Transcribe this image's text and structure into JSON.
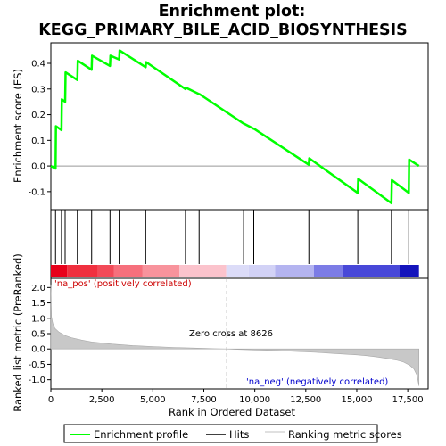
{
  "chart_data": [
    {
      "type": "line",
      "title_line1": "Enrichment plot:",
      "title_line2": "KEGG_PRIMARY_BILE_ACID_BIOSYNTHESIS",
      "ylabel": "Enrichment score (ES)",
      "xlim": [
        0,
        18500
      ],
      "ylim": [
        -0.17,
        0.48
      ],
      "yticks": [
        -0.1,
        0.0,
        0.1,
        0.2,
        0.3,
        0.4
      ],
      "ytick_labels": [
        "-0.1",
        "0.0",
        "0.1",
        "0.2",
        "0.3",
        "0.4"
      ],
      "series": [
        {
          "name": "Enrichment profile",
          "color": "#00ff00",
          "x": [
            0,
            230,
            250,
            520,
            540,
            700,
            720,
            1300,
            1320,
            2000,
            2020,
            2900,
            2920,
            3350,
            3370,
            4650,
            4670,
            6600,
            6620,
            7270,
            7290,
            9450,
            9470,
            9950,
            9970,
            12650,
            12670,
            15050,
            15070,
            16700,
            16720,
            17550,
            17570,
            18050
          ],
          "y": [
            0.0,
            -0.01,
            0.155,
            0.14,
            0.26,
            0.25,
            0.365,
            0.335,
            0.41,
            0.375,
            0.43,
            0.39,
            0.43,
            0.415,
            0.45,
            0.385,
            0.405,
            0.3,
            0.305,
            0.28,
            0.28,
            0.165,
            0.165,
            0.145,
            0.145,
            0.005,
            0.03,
            -0.105,
            -0.05,
            -0.145,
            -0.055,
            -0.105,
            0.025,
            0.0
          ]
        }
      ]
    },
    {
      "type": "hits",
      "hit_positions": [
        230,
        520,
        700,
        1300,
        2000,
        2900,
        3350,
        4650,
        6600,
        7270,
        9450,
        9950,
        12650,
        15050,
        16700,
        17550
      ],
      "heatmap_segments": [
        {
          "from": 0,
          "to": 800,
          "color": "#e8001a"
        },
        {
          "from": 800,
          "to": 2300,
          "color": "#f0303f"
        },
        {
          "from": 2300,
          "to": 3100,
          "color": "#f24a58"
        },
        {
          "from": 3100,
          "to": 4500,
          "color": "#f6707c"
        },
        {
          "from": 4500,
          "to": 6300,
          "color": "#f8939c"
        },
        {
          "from": 6300,
          "to": 8600,
          "color": "#fbc3cc"
        },
        {
          "from": 8600,
          "to": 9700,
          "color": "#dcdcf8"
        },
        {
          "from": 9700,
          "to": 11000,
          "color": "#d2d2f6"
        },
        {
          "from": 11000,
          "to": 12900,
          "color": "#b4b4f0"
        },
        {
          "from": 12900,
          "to": 14300,
          "color": "#7c7ce6"
        },
        {
          "from": 14300,
          "to": 17100,
          "color": "#4848d8"
        },
        {
          "from": 17100,
          "to": 18050,
          "color": "#1414bc"
        }
      ]
    },
    {
      "type": "area",
      "xlabel": "Rank in Ordered Dataset",
      "ylabel": "Ranked list metric (PreRanked)",
      "xlim": [
        0,
        18500
      ],
      "ylim": [
        -1.3,
        2.3
      ],
      "yticks": [
        -1.0,
        -0.5,
        0.0,
        0.5,
        1.0,
        1.5,
        2.0
      ],
      "ytick_labels": [
        "-1.0",
        "-0.5",
        "0.0",
        "0.5",
        "1.0",
        "1.5",
        "2.0"
      ],
      "xticks": [
        0,
        2500,
        5000,
        7500,
        10000,
        12500,
        15000,
        17500
      ],
      "xtick_labels": [
        "0",
        "2,500",
        "5,000",
        "7,500",
        "10,000",
        "12,500",
        "15,000",
        "17,500"
      ],
      "metric_x": [
        0,
        30,
        100,
        200,
        400,
        700,
        1000,
        1500,
        2000,
        3000,
        4000,
        5000,
        6000,
        7000,
        8000,
        8626,
        9000,
        10000,
        11000,
        12000,
        13000,
        14000,
        15000,
        15500,
        16000,
        16500,
        17000,
        17300,
        17600,
        17800,
        17950,
        18050
      ],
      "metric_y": [
        2.1,
        1.05,
        0.82,
        0.67,
        0.55,
        0.44,
        0.37,
        0.29,
        0.23,
        0.16,
        0.11,
        0.08,
        0.05,
        0.03,
        0.01,
        0.0,
        -0.01,
        -0.03,
        -0.05,
        -0.08,
        -0.11,
        -0.15,
        -0.19,
        -0.22,
        -0.26,
        -0.31,
        -0.37,
        -0.43,
        -0.53,
        -0.65,
        -0.85,
        -1.2
      ],
      "zero_cross": 8626,
      "annotations": {
        "pos": "'na_pos' (positively correlated)",
        "neg": "'na_neg' (negatively correlated)",
        "zero": "Zero cross at 8626"
      },
      "colors": {
        "pos": "#cc0000",
        "neg": "#0000cc",
        "fill": "#c8c8c8"
      }
    }
  ],
  "legend": {
    "items": [
      {
        "label": "Enrichment profile",
        "color": "#00ff00"
      },
      {
        "label": "Hits",
        "color": "#000000"
      },
      {
        "label": "Ranking metric scores",
        "color": "#c0c0c0"
      }
    ]
  }
}
